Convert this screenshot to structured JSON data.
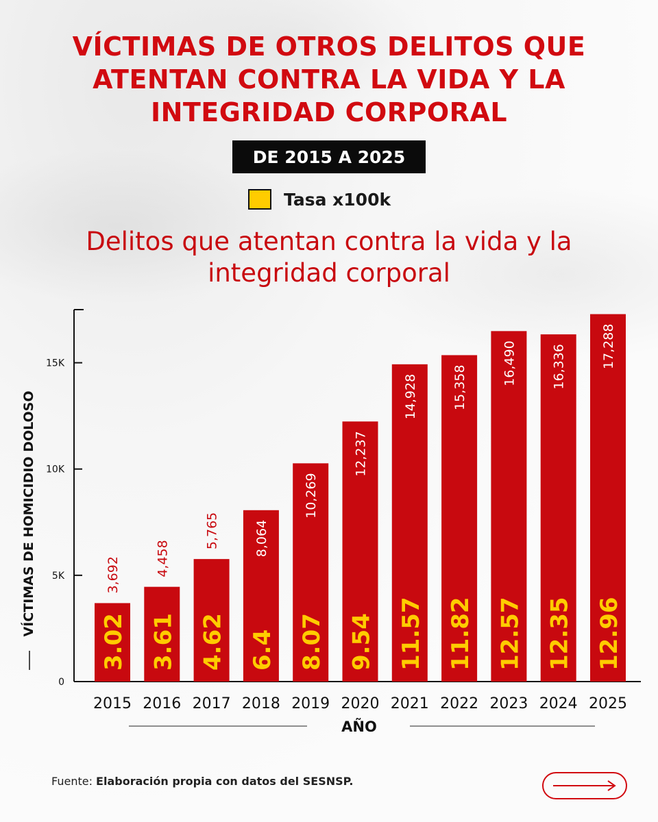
{
  "header": {
    "title": "VÍCTIMAS DE OTROS DELITOS QUE ATENTAN CONTRA LA VIDA Y LA INTEGRIDAD CORPORAL",
    "date_range": "DE 2015 A 2025"
  },
  "legend": {
    "label": "Tasa x100k",
    "color": "#ffcc00"
  },
  "footer": {
    "source_prefix": "Fuente: ",
    "source_text": "Elaboración propia con datos del SESNSP."
  },
  "chart_data": {
    "type": "bar",
    "title": "Delitos que atentan contra la vida y la integridad corporal",
    "xlabel": "AÑO",
    "ylabel": "VÍCTIMAS DE HOMICIDIO DOLOSO",
    "ylim": [
      0,
      17500
    ],
    "yticks": [
      0,
      5000,
      10000,
      15000
    ],
    "ytick_labels": [
      "0",
      "5K",
      "10K",
      "15K"
    ],
    "categories": [
      "2015",
      "2016",
      "2017",
      "2018",
      "2019",
      "2020",
      "2021",
      "2022",
      "2023",
      "2024",
      "2025"
    ],
    "values": [
      3692,
      4458,
      5765,
      8064,
      10269,
      12237,
      14928,
      15358,
      16490,
      16336,
      17288
    ],
    "value_labels": [
      "3,692",
      "4,458",
      "5,765",
      "8,064",
      "10,269",
      "12,237",
      "14,928",
      "15,358",
      "16,490",
      "16,336",
      "17,288"
    ],
    "rate_labels": [
      "3.02",
      "3.61",
      "4.62",
      "6.4",
      "8.07",
      "9.54",
      "11.57",
      "11.82",
      "12.57",
      "12.35",
      "12.96"
    ],
    "bar_color": "#c8090f",
    "rate_color": "#ffcc00"
  }
}
